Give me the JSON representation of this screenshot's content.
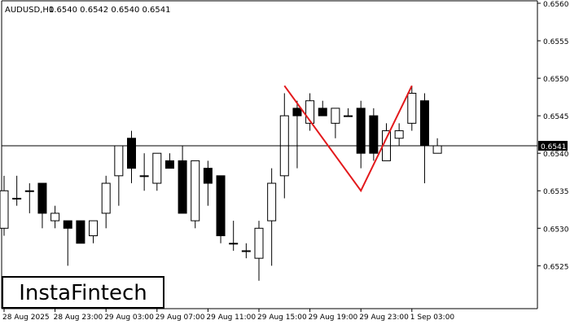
{
  "chart_data": {
    "type": "candlestick",
    "symbol_label": "AUDUSD,H1",
    "ohlc_label": "0.6540 0.6542 0.6540 0.6541",
    "current_price": 0.6541,
    "current_price_label": "0.6541",
    "y_min": 0.65195,
    "y_max": 0.656,
    "y_ticks": [
      "0.6560",
      "0.6555",
      "0.6550",
      "0.6545",
      "0.6540",
      "0.6535",
      "0.6530",
      "0.6525"
    ],
    "x_labels": [
      "28 Aug 2025",
      "28 Aug 23:00",
      "29 Aug 03:00",
      "29 Aug 07:00",
      "29 Aug 11:00",
      "29 Aug 15:00",
      "29 Aug 19:00",
      "29 Aug 23:00",
      "1 Sep 03:00"
    ],
    "candles": [
      {
        "o": 0.653,
        "h": 0.6537,
        "l": 0.6529,
        "c": 0.6535
      },
      {
        "o": 0.6534,
        "h": 0.6537,
        "l": 0.6533,
        "c": 0.6534
      },
      {
        "o": 0.6535,
        "h": 0.6536,
        "l": 0.6532,
        "c": 0.6535
      },
      {
        "o": 0.6536,
        "h": 0.6536,
        "l": 0.653,
        "c": 0.6532
      },
      {
        "o": 0.6531,
        "h": 0.6533,
        "l": 0.653,
        "c": 0.6532
      },
      {
        "o": 0.6531,
        "h": 0.6531,
        "l": 0.6525,
        "c": 0.653
      },
      {
        "o": 0.6531,
        "h": 0.6531,
        "l": 0.6528,
        "c": 0.6528
      },
      {
        "o": 0.6529,
        "h": 0.6531,
        "l": 0.6528,
        "c": 0.6531
      },
      {
        "o": 0.6532,
        "h": 0.6537,
        "l": 0.653,
        "c": 0.6536
      },
      {
        "o": 0.6537,
        "h": 0.6541,
        "l": 0.6533,
        "c": 0.6541
      },
      {
        "o": 0.6542,
        "h": 0.6543,
        "l": 0.6536,
        "c": 0.6538
      },
      {
        "o": 0.6537,
        "h": 0.654,
        "l": 0.6535,
        "c": 0.6537
      },
      {
        "o": 0.6536,
        "h": 0.654,
        "l": 0.6535,
        "c": 0.654
      },
      {
        "o": 0.6539,
        "h": 0.654,
        "l": 0.6538,
        "c": 0.6538
      },
      {
        "o": 0.6539,
        "h": 0.6541,
        "l": 0.6532,
        "c": 0.6532
      },
      {
        "o": 0.6531,
        "h": 0.6539,
        "l": 0.653,
        "c": 0.6539
      },
      {
        "o": 0.6538,
        "h": 0.6539,
        "l": 0.6533,
        "c": 0.6536
      },
      {
        "o": 0.6537,
        "h": 0.6537,
        "l": 0.6528,
        "c": 0.6529
      },
      {
        "o": 0.6528,
        "h": 0.6531,
        "l": 0.6527,
        "c": 0.6528
      },
      {
        "o": 0.6527,
        "h": 0.6528,
        "l": 0.6526,
        "c": 0.6527
      },
      {
        "o": 0.6526,
        "h": 0.6531,
        "l": 0.6523,
        "c": 0.653
      },
      {
        "o": 0.6531,
        "h": 0.6538,
        "l": 0.6525,
        "c": 0.6536
      },
      {
        "o": 0.6537,
        "h": 0.6548,
        "l": 0.6534,
        "c": 0.6545
      },
      {
        "o": 0.6546,
        "h": 0.6547,
        "l": 0.6538,
        "c": 0.6545
      },
      {
        "o": 0.6544,
        "h": 0.6548,
        "l": 0.6543,
        "c": 0.6547
      },
      {
        "o": 0.6546,
        "h": 0.6547,
        "l": 0.6545,
        "c": 0.6545
      },
      {
        "o": 0.6544,
        "h": 0.6546,
        "l": 0.6542,
        "c": 0.6546
      },
      {
        "o": 0.6545,
        "h": 0.6546,
        "l": 0.6545,
        "c": 0.6545
      },
      {
        "o": 0.6546,
        "h": 0.6547,
        "l": 0.6538,
        "c": 0.654
      },
      {
        "o": 0.6545,
        "h": 0.6546,
        "l": 0.6539,
        "c": 0.654
      },
      {
        "o": 0.6539,
        "h": 0.6544,
        "l": 0.6539,
        "c": 0.6543
      },
      {
        "o": 0.6542,
        "h": 0.6544,
        "l": 0.6541,
        "c": 0.6543
      },
      {
        "o": 0.6544,
        "h": 0.6549,
        "l": 0.6543,
        "c": 0.6548
      },
      {
        "o": 0.6547,
        "h": 0.6548,
        "l": 0.6536,
        "c": 0.6541
      },
      {
        "o": 0.654,
        "h": 0.6542,
        "l": 0.654,
        "c": 0.6541
      }
    ],
    "pattern": {
      "points": [
        {
          "candle": 22,
          "price": 0.6549
        },
        {
          "candle": 28,
          "price": 0.6535
        },
        {
          "candle": 32,
          "price": 0.6549
        }
      ],
      "color": "#e3191c"
    },
    "colors": {
      "candle_outline": "#000000",
      "bull_fill": "#ffffff",
      "bear_fill": "#000000",
      "axis": "#000000",
      "pattern": "#e3191c"
    }
  },
  "logo": {
    "text": "InstaFintech"
  }
}
